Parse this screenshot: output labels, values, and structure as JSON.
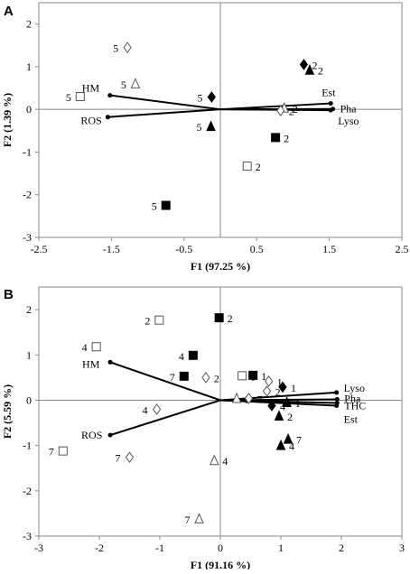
{
  "chart_data": [
    {
      "panel": "A",
      "type": "scatter",
      "title": "",
      "xlabel": "F1 (97.25 %)",
      "ylabel": "F2 (1.39 %)",
      "xlim": [
        -2.5,
        2.5
      ],
      "ylim": [
        -3,
        2.5
      ],
      "xticks": [
        "-2.5",
        "-1.5",
        "-0.5",
        "0.5",
        "1.5",
        "2.5"
      ],
      "xtick_values": [
        -2.5,
        -1.5,
        -0.5,
        0.5,
        1.5,
        2.5
      ],
      "yticks": [
        "-3",
        "-2",
        "-1",
        "0",
        "1",
        "2"
      ],
      "ytick_values": [
        -3,
        -2,
        -1,
        0,
        1,
        2
      ],
      "vectors": [
        {
          "label": "HM",
          "x": -1.52,
          "y": 0.33
        },
        {
          "label": "ROS",
          "x": -1.55,
          "y": -0.18
        },
        {
          "label": "Est",
          "x": 1.52,
          "y": 0.14
        },
        {
          "label": "Pha",
          "x": 1.55,
          "y": 0.01
        },
        {
          "label": "Lyso",
          "x": 1.52,
          "y": -0.02
        }
      ],
      "points": [
        {
          "marker": "diamond-open",
          "x": -1.28,
          "y": 1.45,
          "label": "5"
        },
        {
          "marker": "square-open",
          "x": -1.93,
          "y": 0.3,
          "label": "5"
        },
        {
          "marker": "triangle-open",
          "x": -1.17,
          "y": 0.6,
          "label": "5"
        },
        {
          "marker": "diamond-filled",
          "x": -0.12,
          "y": 0.29,
          "label": "5"
        },
        {
          "marker": "triangle-filled",
          "x": -0.13,
          "y": -0.4,
          "label": "5"
        },
        {
          "marker": "square-filled",
          "x": -0.75,
          "y": -2.25,
          "label": "5"
        },
        {
          "marker": "diamond-filled",
          "x": 1.15,
          "y": 1.05,
          "label": "2"
        },
        {
          "marker": "triangle-filled",
          "x": 1.23,
          "y": 0.92,
          "label": "2"
        },
        {
          "marker": "triangle-open",
          "x": 0.88,
          "y": 0.03,
          "label": "2"
        },
        {
          "marker": "diamond-open",
          "x": 0.83,
          "y": -0.03,
          "label": "2"
        },
        {
          "marker": "square-filled",
          "x": 0.76,
          "y": -0.66,
          "label": "2"
        },
        {
          "marker": "square-open",
          "x": 0.37,
          "y": -1.33,
          "label": "2"
        }
      ]
    },
    {
      "panel": "B",
      "type": "scatter",
      "title": "",
      "xlabel": "F1 (91.16 %)",
      "ylabel": "F2 (5.59 %)",
      "xlim": [
        -3,
        3
      ],
      "ylim": [
        -3,
        2.5
      ],
      "xticks": [
        "-3",
        "-2",
        "-1",
        "0",
        "1",
        "2",
        "3"
      ],
      "xtick_values": [
        -3,
        -2,
        -1,
        0,
        1,
        2,
        3
      ],
      "yticks": [
        "-3",
        "-2",
        "-1",
        "0",
        "1",
        "2"
      ],
      "ytick_values": [
        -3,
        -2,
        -1,
        0,
        1,
        2
      ],
      "vectors": [
        {
          "label": "HM",
          "x": -1.82,
          "y": 0.84
        },
        {
          "label": "ROS",
          "x": -1.82,
          "y": -0.77
        },
        {
          "label": "Lyso",
          "x": 1.92,
          "y": 0.17
        },
        {
          "label": "Pha",
          "x": 1.93,
          "y": 0.02
        },
        {
          "label": "THC",
          "x": 1.93,
          "y": -0.06
        },
        {
          "label": "Est",
          "x": 1.92,
          "y": -0.12
        }
      ],
      "points": [
        {
          "marker": "square-open",
          "x": -1.01,
          "y": 1.77,
          "label": "2"
        },
        {
          "marker": "square-filled",
          "x": -0.02,
          "y": 1.82,
          "label": "2"
        },
        {
          "marker": "square-open",
          "x": -2.05,
          "y": 1.18,
          "label": "4"
        },
        {
          "marker": "square-filled",
          "x": -0.45,
          "y": 0.99,
          "label": "4"
        },
        {
          "marker": "square-filled",
          "x": -0.6,
          "y": 0.53,
          "label": "7"
        },
        {
          "marker": "diamond-open",
          "x": -0.24,
          "y": 0.5,
          "label": "2"
        },
        {
          "marker": "square-open",
          "x": 0.36,
          "y": 0.54,
          "label": "1"
        },
        {
          "marker": "square-filled",
          "x": 0.54,
          "y": 0.55,
          "label": "1"
        },
        {
          "marker": "diamond-open",
          "x": 0.8,
          "y": 0.42,
          "label": "1"
        },
        {
          "marker": "diamond-filled",
          "x": 1.03,
          "y": 0.29,
          "label": "1"
        },
        {
          "marker": "diamond-open",
          "x": 0.77,
          "y": 0.2,
          "label": "2"
        },
        {
          "marker": "triangle-open",
          "x": 0.27,
          "y": 0.04,
          "label": "2"
        },
        {
          "marker": "diamond-open",
          "x": 0.47,
          "y": 0.04,
          "label": "7"
        },
        {
          "marker": "diamond-filled",
          "x": 0.85,
          "y": -0.12,
          "label": "4"
        },
        {
          "marker": "triangle-filled",
          "x": 1.1,
          "y": -0.05,
          "label": "1"
        },
        {
          "marker": "triangle-filled",
          "x": 0.97,
          "y": -0.35,
          "label": "2"
        },
        {
          "marker": "triangle-filled",
          "x": 1.12,
          "y": -0.86,
          "label": "7"
        },
        {
          "marker": "triangle-filled",
          "x": 1.0,
          "y": -1.0,
          "label": "4"
        },
        {
          "marker": "diamond-open",
          "x": -1.05,
          "y": -0.2,
          "label": "4"
        },
        {
          "marker": "square-open",
          "x": -2.6,
          "y": -1.12,
          "label": "7"
        },
        {
          "marker": "diamond-open",
          "x": -1.5,
          "y": -1.26,
          "label": "7"
        },
        {
          "marker": "triangle-open",
          "x": -0.1,
          "y": -1.33,
          "label": "4"
        },
        {
          "marker": "triangle-open",
          "x": -0.35,
          "y": -2.62,
          "label": "7"
        }
      ]
    }
  ]
}
